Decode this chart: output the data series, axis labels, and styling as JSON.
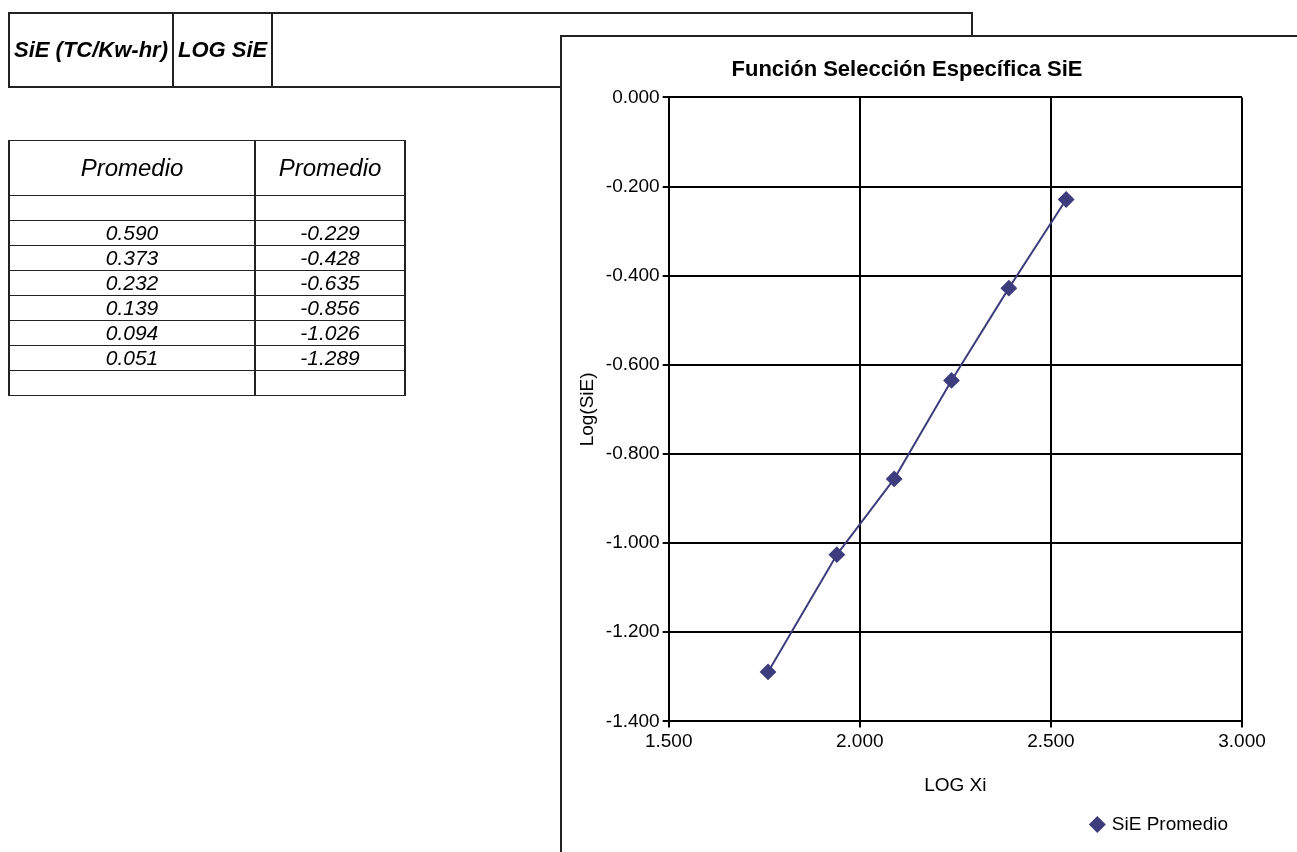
{
  "chart_data": [
    {
      "type": "other",
      "annotations": [
        "SiE (TC/Kw-hr)",
        "LOG SiE",
        "Promedio",
        "Promedio",
        "0.590",
        "-0.229",
        "0.373",
        "-0.428",
        "0.232",
        "-0.635",
        "0.139",
        "-0.856",
        "0.094",
        "-1.026",
        "0.051",
        "-1.289"
      ]
    },
    {
      "type": "line",
      "title": "Función Selección Específica SiE",
      "xlabel": "LOG Xi",
      "ylabel": "Log(SiE)",
      "series": [
        {
          "name": "SiE Promedio",
          "color": "#3d3d7e",
          "x": [
            2.54,
            2.39,
            2.24,
            2.09,
            1.94,
            1.76
          ],
          "values": [
            -0.229,
            -0.428,
            -0.635,
            -0.856,
            -1.026,
            -1.289
          ]
        }
      ],
      "xlim": [
        1.5,
        3.0
      ],
      "xticks": [
        {
          "value": 1.5,
          "label": "1.500"
        },
        {
          "value": 2.0,
          "label": "2.000"
        },
        {
          "value": 2.5,
          "label": "2.500"
        },
        {
          "value": 3.0,
          "label": "3.000"
        }
      ],
      "ylim": [
        -1.4,
        0
      ],
      "yticks": [
        {
          "value": -1.4,
          "label": "-1.400"
        },
        {
          "value": -1.2,
          "label": "-1.200"
        },
        {
          "value": -1.0,
          "label": "-1.000"
        },
        {
          "value": -0.8,
          "label": "-0.800"
        },
        {
          "value": -0.6,
          "label": "-0.600"
        },
        {
          "value": -0.4,
          "label": "-0.400"
        },
        {
          "value": -0.2,
          "label": "-0.200"
        },
        {
          "value": 0,
          "label": "0.000"
        }
      ],
      "grid": true,
      "legend": "bottom right",
      "marker": "diamond",
      "line_style": "solid"
    }
  ]
}
